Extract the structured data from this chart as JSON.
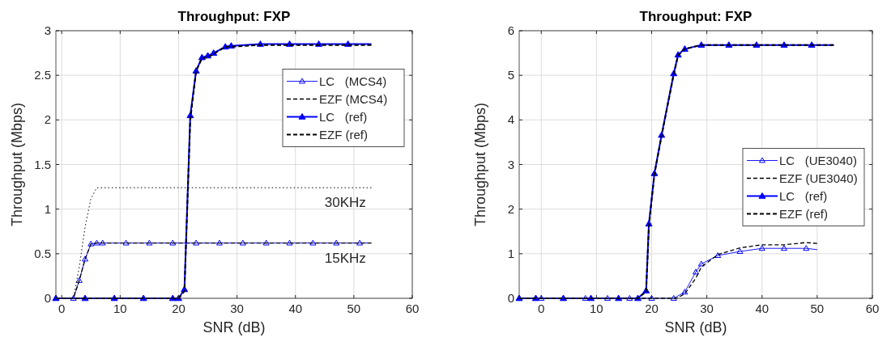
{
  "chart_data": [
    {
      "type": "line",
      "title": "Throughput: FXP",
      "xlabel": "SNR (dB)",
      "ylabel": "Throughput (Mbps)",
      "xlim": [
        -1,
        60
      ],
      "xticks": [
        0,
        10,
        20,
        30,
        40,
        50,
        60
      ],
      "ylim": [
        0,
        3
      ],
      "yticks": [
        0,
        0.5,
        1,
        1.5,
        2,
        2.5,
        3
      ],
      "grid": true,
      "legend": "right",
      "annotations": [
        {
          "text": "30KHz",
          "x": 45,
          "y": 1.24
        },
        {
          "text": "15KHz",
          "x": 45,
          "y": 0.62
        }
      ],
      "series": [
        {
          "name": "LC   (MCS4)",
          "color": "#0000ff",
          "marker": "triangle",
          "x": [
            -1,
            2,
            3,
            4,
            5,
            6,
            7,
            11,
            15,
            19,
            23,
            27,
            31,
            35,
            39,
            43,
            47,
            51,
            53
          ],
          "values": [
            0,
            0,
            0.2,
            0.44,
            0.61,
            0.62,
            0.62,
            0.62,
            0.62,
            0.62,
            0.62,
            0.62,
            0.62,
            0.62,
            0.62,
            0.62,
            0.62,
            0.62,
            0.62
          ]
        },
        {
          "name": "EZF (MCS4)",
          "color": "#000000",
          "marker": "none",
          "line_style": "dashed",
          "x": [
            -1,
            2,
            3,
            4,
            5,
            6,
            53
          ],
          "values": [
            0,
            0,
            0.2,
            0.44,
            0.61,
            0.62,
            0.62
          ]
        },
        {
          "name": "LC   (ref)",
          "color": "#0000ff",
          "marker": "triangle",
          "x": [
            -1,
            4,
            9,
            14,
            19,
            20,
            21,
            22,
            23,
            24,
            25,
            26,
            28,
            29,
            34,
            39,
            44,
            49,
            53
          ],
          "values": [
            0,
            0,
            0,
            0,
            0,
            0,
            0.1,
            2.05,
            2.55,
            2.7,
            2.72,
            2.75,
            2.82,
            2.83,
            2.85,
            2.85,
            2.85,
            2.85,
            2.85
          ]
        },
        {
          "name": "EZF (ref)",
          "color": "#000000",
          "marker": "none",
          "line_style": "dashed",
          "x": [
            -1,
            20,
            21,
            22,
            23,
            24,
            25,
            26,
            28,
            29,
            34,
            53
          ],
          "values": [
            0,
            0,
            0.08,
            2.0,
            2.55,
            2.69,
            2.7,
            2.74,
            2.82,
            2.82,
            2.84,
            2.84
          ]
        },
        {
          "color": "#000000",
          "marker": "none",
          "line_style": "dotted",
          "x": [
            1,
            2,
            3,
            4,
            5,
            6,
            53
          ],
          "values": [
            0,
            0,
            0.35,
            0.8,
            1.12,
            1.24,
            1.24
          ]
        }
      ]
    },
    {
      "type": "line",
      "title": "Throughput: FXP",
      "xlabel": "SNR (dB)",
      "ylabel": "Throughput (Mbps)",
      "xlim": [
        -4,
        60
      ],
      "xticks": [
        0,
        10,
        20,
        30,
        40,
        50,
        60
      ],
      "ylim": [
        0,
        6
      ],
      "yticks": [
        0,
        1,
        2,
        3,
        4,
        5,
        6
      ],
      "grid": true,
      "legend": "right",
      "series": [
        {
          "name": "LC   (UE3040)",
          "color": "#0000ff",
          "marker": "triangle",
          "x": [
            -4,
            -1,
            0,
            4,
            8,
            12,
            16,
            20,
            24,
            26,
            28,
            29,
            32,
            36,
            40,
            44,
            48,
            50
          ],
          "values": [
            0,
            0,
            0,
            0,
            0,
            0,
            0,
            0,
            0,
            0.14,
            0.59,
            0.77,
            0.96,
            1.05,
            1.12,
            1.12,
            1.12,
            1.09
          ]
        },
        {
          "name": "EZF (UE3040)",
          "color": "#000000",
          "marker": "none",
          "line_style": "dashed",
          "x": [
            -4,
            24.5,
            26,
            28,
            29,
            32,
            36,
            40,
            44,
            48,
            50
          ],
          "values": [
            0,
            0,
            0.1,
            0.45,
            0.7,
            0.98,
            1.13,
            1.2,
            1.2,
            1.25,
            1.23
          ]
        },
        {
          "name": "LC   (ref)",
          "color": "#0000ff",
          "marker": "triangle",
          "x": [
            -4,
            -1,
            4,
            9,
            14,
            17.5,
            19,
            19.5,
            20.5,
            21.8,
            24,
            24.8,
            26,
            29,
            34,
            39,
            44,
            49,
            53
          ],
          "values": [
            0,
            0,
            0,
            0,
            0,
            0,
            0.17,
            1.67,
            2.8,
            3.66,
            5.04,
            5.46,
            5.59,
            5.68,
            5.68,
            5.68,
            5.68,
            5.68,
            5.68
          ]
        },
        {
          "name": "EZF (ref)",
          "color": "#000000",
          "marker": "none",
          "line_style": "dashed",
          "x": [
            -4,
            17.5,
            19,
            19.5,
            20.5,
            21.8,
            24,
            24.8,
            26,
            29,
            53
          ],
          "values": [
            0,
            0,
            0.15,
            1.6,
            2.78,
            3.64,
            5.02,
            5.45,
            5.59,
            5.68,
            5.68
          ]
        }
      ]
    }
  ]
}
